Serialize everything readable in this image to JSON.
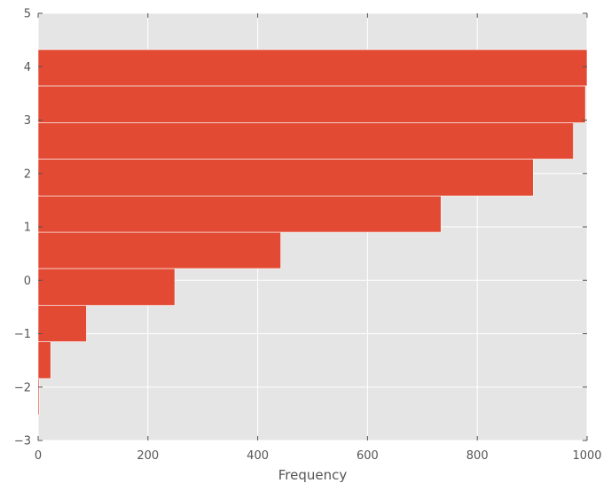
{
  "chart_data": {
    "type": "bar",
    "orientation": "horizontal",
    "title": "",
    "xlabel": "Frequency",
    "ylabel": "",
    "xlim": [
      0,
      1000
    ],
    "ylim": [
      -3,
      5
    ],
    "x_ticks": [
      "0",
      "200",
      "400",
      "600",
      "800",
      "1000"
    ],
    "y_ticks": [
      "5",
      "4",
      "3",
      "2",
      "1",
      "0",
      "−1",
      "−2",
      "−3"
    ],
    "grid": true,
    "bins": [
      {
        "start": -2.52,
        "end": -1.84,
        "value": 2
      },
      {
        "start": -1.84,
        "end": -1.15,
        "value": 23
      },
      {
        "start": -1.15,
        "end": -0.47,
        "value": 88
      },
      {
        "start": -0.47,
        "end": 0.22,
        "value": 249
      },
      {
        "start": 0.22,
        "end": 0.9,
        "value": 442
      },
      {
        "start": 0.9,
        "end": 1.58,
        "value": 734
      },
      {
        "start": 1.58,
        "end": 2.27,
        "value": 902
      },
      {
        "start": 2.27,
        "end": 2.95,
        "value": 975
      },
      {
        "start": 2.95,
        "end": 3.64,
        "value": 997
      },
      {
        "start": 3.64,
        "end": 4.32,
        "value": 1000
      }
    ],
    "colors": {
      "bar": "#E24A33",
      "background": "#E5E5E5",
      "grid": "#FFFFFF",
      "text": "#555555"
    }
  }
}
